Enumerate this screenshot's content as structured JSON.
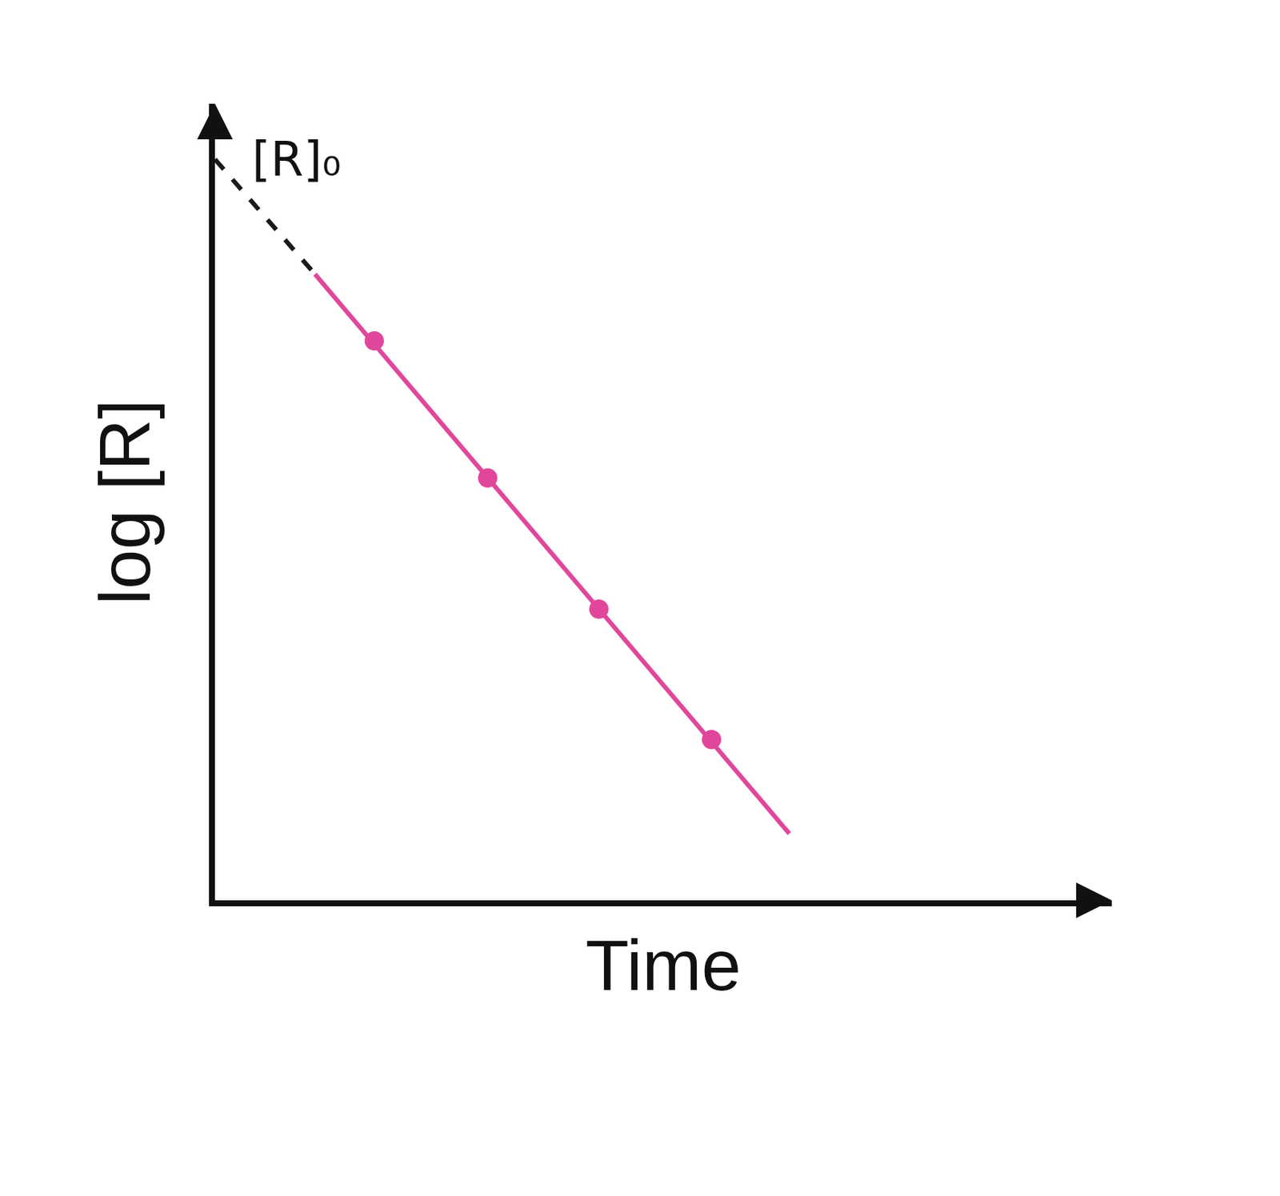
{
  "chart_data": {
    "type": "line",
    "x_label": "Time",
    "y_label": "log [R]",
    "annotations": [
      "[R]₀"
    ],
    "xlim": [
      0,
      12.1
    ],
    "ylim": [
      0,
      10.75
    ],
    "xticks": [],
    "yticks": [],
    "tick_labels": false,
    "grid": false,
    "series": [
      {
        "type": "line",
        "line_style": "dashed",
        "color": "#1a1a1a",
        "x": [
          0,
          1.35
        ],
        "values": [
          10.0,
          8.45
        ]
      },
      {
        "type": "line",
        "line_style": "solid",
        "color": "#e0479b",
        "x": [
          1.35,
          7.75
        ],
        "values": [
          8.45,
          0.9
        ]
      },
      {
        "type": "scatter",
        "marker": "circle",
        "color": "#e0479b",
        "x": [
          2.15,
          3.68,
          5.18,
          6.7
        ],
        "values": [
          7.55,
          5.7,
          3.93,
          2.17
        ]
      }
    ]
  }
}
